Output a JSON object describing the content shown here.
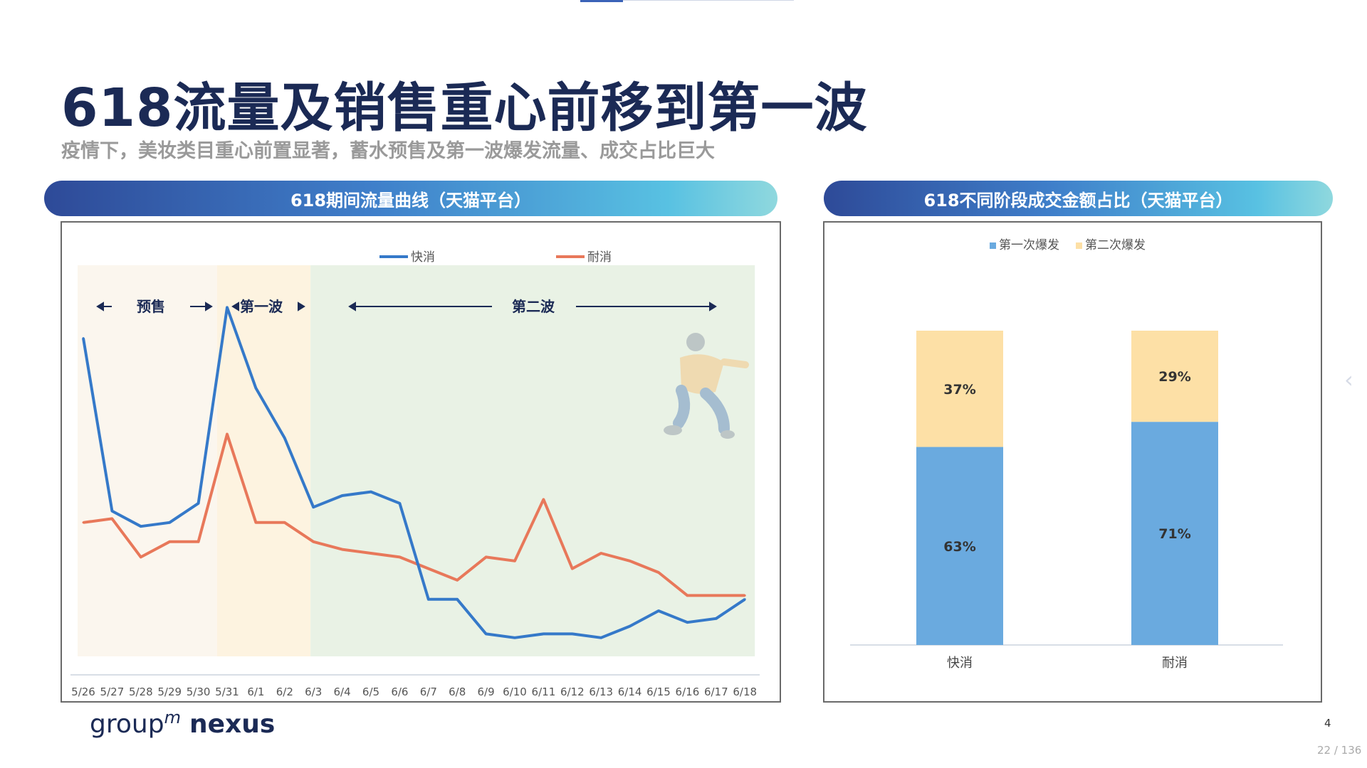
{
  "title": "618流量及销售重心前移到第一波",
  "subtitle": "疫情下，美妆类目重心前置显著，蓄水预售及第一波爆发流量、成交占比巨大",
  "left_banner": "618期间流量曲线（天猫平台）",
  "right_banner": "618不同阶段成交金额占比（天猫平台）",
  "phases": {
    "presale": "预售",
    "wave1": "第一波",
    "wave2": "第二波"
  },
  "footer": {
    "logo_group": "group",
    "logo_m": "m",
    "logo_nexus": "nexus",
    "page_number": "4",
    "page_counter": "22 / 136"
  },
  "colors": {
    "fmcg": "#3579c9",
    "durable": "#e8785a",
    "presale_bg": "#fbf6ee",
    "wave1_bg": "#fdf3e0",
    "wave2_bg": "#e9f2e5",
    "first_burst": "#6aaadf",
    "second_burst": "#fde0a6"
  },
  "chart_data": [
    {
      "type": "line",
      "title": "618期间流量曲线（天猫平台）",
      "x": [
        "5/26",
        "5/27",
        "5/28",
        "5/29",
        "5/30",
        "5/31",
        "6/1",
        "6/2",
        "6/3",
        "6/4",
        "6/5",
        "6/6",
        "6/7",
        "6/8",
        "6/9",
        "6/10",
        "6/11",
        "6/12",
        "6/13",
        "6/14",
        "6/15",
        "6/16",
        "6/17",
        "6/18"
      ],
      "y_axis_labels": "none",
      "ylim": [
        0,
        100
      ],
      "grid": false,
      "legend": "top",
      "series": [
        {
          "name": "快消",
          "color": "#3579c9",
          "values": [
            81,
            36,
            32,
            33,
            38,
            89,
            68,
            55,
            37,
            40,
            41,
            38,
            13,
            13,
            4,
            3,
            4,
            4,
            3,
            6,
            10,
            7,
            8,
            13
          ]
        },
        {
          "name": "耐消",
          "color": "#e8785a",
          "values": [
            33,
            34,
            24,
            28,
            28,
            56,
            33,
            33,
            28,
            26,
            25,
            24,
            21,
            18,
            24,
            23,
            39,
            21,
            25,
            23,
            20,
            14,
            14,
            14
          ]
        }
      ]
    },
    {
      "type": "bar",
      "stacked": true,
      "percent": true,
      "title": "618不同阶段成交金额占比（天猫平台）",
      "categories": [
        "快消",
        "耐消"
      ],
      "ylim": [
        0,
        100
      ],
      "legend": "top",
      "series": [
        {
          "name": "第一次爆发",
          "color": "#6aaadf",
          "values": [
            63,
            71
          ],
          "labels": [
            "63%",
            "71%"
          ]
        },
        {
          "name": "第二次爆发",
          "color": "#fde0a6",
          "values": [
            37,
            29
          ],
          "labels": [
            "37%",
            "29%"
          ]
        }
      ]
    }
  ]
}
